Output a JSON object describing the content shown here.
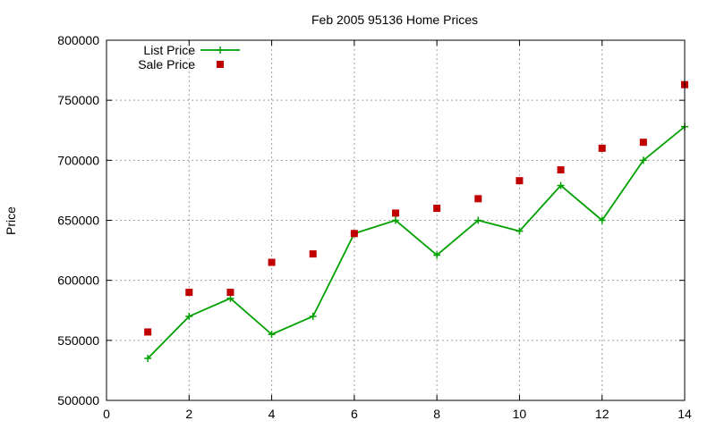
{
  "chart_data": {
    "type": "line",
    "title": "Feb 2005 95136 Home Prices",
    "xlabel": "",
    "ylabel": "Price",
    "xlim": [
      0,
      14
    ],
    "ylim": [
      500000,
      800000
    ],
    "xticks": [
      0,
      2,
      4,
      6,
      8,
      10,
      12,
      14
    ],
    "yticks": [
      500000,
      550000,
      600000,
      650000,
      700000,
      750000,
      800000
    ],
    "grid": true,
    "legend_position": "top-left",
    "series": [
      {
        "name": "List Price",
        "style": "line+cross",
        "color": "#00a000",
        "x": [
          1,
          2,
          3,
          4,
          5,
          6,
          7,
          8,
          9,
          10,
          11,
          12,
          13,
          14
        ],
        "y": [
          535000,
          570000,
          585000,
          555000,
          570000,
          639000,
          650000,
          621000,
          650000,
          641000,
          679000,
          650000,
          700000,
          728000
        ]
      },
      {
        "name": "Sale Price",
        "style": "square-points",
        "color": "#c00000",
        "x": [
          1,
          2,
          3,
          4,
          5,
          6,
          7,
          8,
          9,
          10,
          11,
          12,
          13,
          14
        ],
        "y": [
          557000,
          590000,
          590000,
          615000,
          622000,
          639000,
          656000,
          660000,
          668000,
          683000,
          692000,
          710000,
          715000,
          763000
        ]
      }
    ]
  }
}
